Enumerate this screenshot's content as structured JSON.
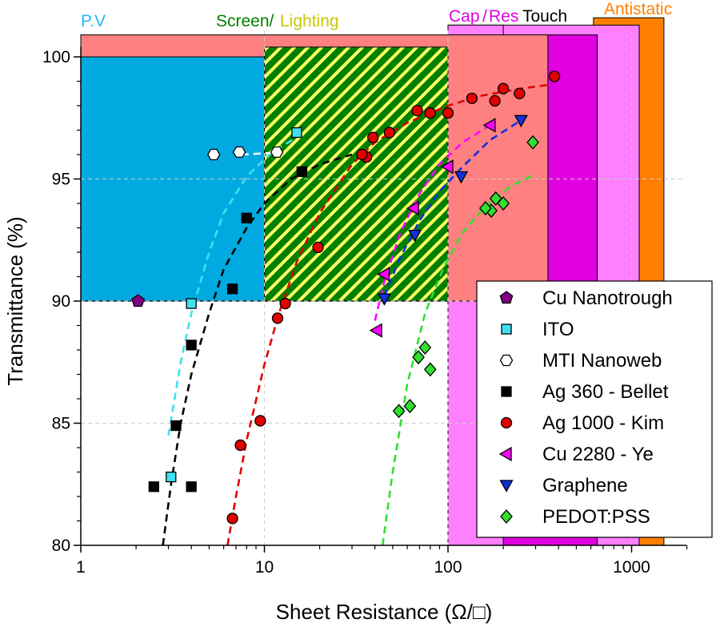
{
  "chart_data": {
    "type": "scatter",
    "xscale": "log",
    "xlim": [
      1,
      2000
    ],
    "ylim": [
      80,
      101.2
    ],
    "xlabel": "Sheet Resistance (Ω/□)",
    "ylabel": "Transmittance (%)",
    "x_ticks": [
      {
        "value": 1,
        "label": "1"
      },
      {
        "value": 10,
        "label": "10"
      },
      {
        "value": 100,
        "label": "100"
      },
      {
        "value": 1000,
        "label": "1000"
      }
    ],
    "y_ticks": [
      {
        "value": 80,
        "label": "80"
      },
      {
        "value": 85,
        "label": "85"
      },
      {
        "value": 90,
        "label": "90"
      },
      {
        "value": 95,
        "label": "95"
      },
      {
        "value": 100,
        "label": "100"
      }
    ],
    "regions": [
      {
        "name": "antistatic",
        "x": [
          620,
          1500
        ],
        "y": [
          80,
          101.6
        ],
        "color": "#ff8000"
      },
      {
        "name": "cap-res",
        "x": [
          100,
          1100
        ],
        "y": [
          80,
          101.3
        ],
        "color": "#ff80ff"
      },
      {
        "name": "touch",
        "x": [
          100,
          650
        ],
        "y": [
          80,
          100.9
        ],
        "color": "#e000e0"
      },
      {
        "name": "cap-res-lower",
        "x": [
          100,
          200
        ],
        "y": [
          80,
          101.3
        ],
        "color": "#ff80ff"
      },
      {
        "name": "screen-lighting",
        "x": [
          1,
          350
        ],
        "y": [
          90,
          100.9
        ],
        "color": "#ff8080"
      },
      {
        "name": "pv",
        "x": [
          1,
          10
        ],
        "y": [
          90,
          100
        ],
        "color": "#00aae0"
      },
      {
        "name": "hatched",
        "x": [
          10,
          100
        ],
        "y": [
          90,
          100.4
        ],
        "color": "#008000"
      }
    ],
    "region_labels": [
      {
        "text": "P.V",
        "color": "#29b6f6"
      },
      {
        "text": "Screen/",
        "color": "#008000"
      },
      {
        "text": "Lighting",
        "color": "#c8c800"
      },
      {
        "text": "Cap",
        "color": "#e000e0"
      },
      {
        "text": "/",
        "color": "#e000e0"
      },
      {
        "text": "Res",
        "color": "#e000e0"
      },
      {
        "text": "Touch",
        "color": "#000000"
      },
      {
        "text": "Antistatic",
        "color": "#ff8000"
      }
    ],
    "series": [
      {
        "name": "Cu Nanotrough",
        "marker": "pentagon",
        "color": "#800080",
        "points": [
          [
            2.05,
            90.0
          ]
        ]
      },
      {
        "name": "ITO",
        "marker": "square",
        "color": "#40e0f0",
        "points": [
          [
            15,
            96.9
          ],
          [
            4,
            89.9
          ],
          [
            3.1,
            82.8
          ]
        ],
        "fit": [
          [
            3.0,
            84.5
          ],
          [
            3.5,
            87.5
          ],
          [
            4,
            89.5
          ],
          [
            5,
            92
          ],
          [
            6,
            93.6
          ],
          [
            8,
            95.1
          ],
          [
            11,
            96.1
          ],
          [
            15,
            96.7
          ]
        ]
      },
      {
        "name": "MTI Nanoweb",
        "marker": "hexagon",
        "color": "#ffffff",
        "points": [
          [
            5.3,
            96.0
          ],
          [
            7.3,
            96.1
          ],
          [
            11.7,
            96.1
          ]
        ],
        "fit": [
          [
            7.5,
            96.0
          ],
          [
            10,
            96.05
          ],
          [
            12,
            96.1
          ]
        ]
      },
      {
        "name": "Ag 360 - Bellet",
        "marker": "square",
        "color": "#000000",
        "points": [
          [
            16,
            95.3
          ],
          [
            8,
            93.4
          ],
          [
            6.7,
            90.5
          ],
          [
            4,
            88.2
          ],
          [
            3.3,
            84.9
          ],
          [
            2.5,
            82.4
          ],
          [
            4,
            82.4
          ]
        ],
        "fit": [
          [
            2.8,
            80.0
          ],
          [
            3.1,
            82.5
          ],
          [
            3.5,
            85
          ],
          [
            4,
            87
          ],
          [
            5,
            89.5
          ],
          [
            6,
            91.3
          ],
          [
            8,
            93
          ],
          [
            10,
            94
          ],
          [
            14,
            95
          ],
          [
            20,
            95.6
          ],
          [
            30,
            96
          ]
        ]
      },
      {
        "name": "Ag 1000 - Kim",
        "marker": "circle",
        "color": "#e00000",
        "points": [
          [
            380,
            99.2
          ],
          [
            245,
            98.5
          ],
          [
            200,
            98.7
          ],
          [
            180,
            98.2
          ],
          [
            135,
            98.3
          ],
          [
            100,
            97.7
          ],
          [
            80,
            97.7
          ],
          [
            68,
            97.8
          ],
          [
            48,
            96.9
          ],
          [
            39,
            96.7
          ],
          [
            36,
            95.9
          ],
          [
            34,
            96.0
          ],
          [
            19.6,
            92.2
          ],
          [
            13,
            89.9
          ],
          [
            11.8,
            89.3
          ],
          [
            9.5,
            85.1
          ],
          [
            7.4,
            84.1
          ],
          [
            6.7,
            81.1
          ]
        ],
        "fit": [
          [
            6.3,
            80.0
          ],
          [
            7,
            82
          ],
          [
            8,
            84.3
          ],
          [
            10,
            87.4
          ],
          [
            12,
            89.5
          ],
          [
            15,
            91.6
          ],
          [
            20,
            93.6
          ],
          [
            30,
            95.6
          ],
          [
            40,
            96.5
          ],
          [
            60,
            97.3
          ],
          [
            80,
            97.7
          ],
          [
            100,
            98
          ],
          [
            150,
            98.4
          ],
          [
            250,
            98.7
          ],
          [
            350,
            98.85
          ]
        ]
      },
      {
        "name": "Cu 2280 - Ye",
        "marker": "triangle-left",
        "color": "#ff00ff",
        "points": [
          [
            170,
            97.2
          ],
          [
            100,
            95.5
          ],
          [
            65,
            93.8
          ],
          [
            45,
            91.1
          ],
          [
            41,
            88.8
          ]
        ],
        "fit": [
          [
            40,
            89.2
          ],
          [
            45,
            90.8
          ],
          [
            55,
            92.8
          ],
          [
            70,
            94.4
          ],
          [
            90,
            95.6
          ],
          [
            120,
            96.5
          ],
          [
            170,
            97.2
          ]
        ]
      },
      {
        "name": "Graphene",
        "marker": "triangle-down",
        "color": "#1030e0",
        "points": [
          [
            250,
            97.4
          ],
          [
            118,
            95.1
          ],
          [
            66,
            92.7
          ],
          [
            45,
            90.1
          ]
        ],
        "fit": [
          [
            45,
            90.2
          ],
          [
            55,
            91.8
          ],
          [
            70,
            93.3
          ],
          [
            90,
            94.5
          ],
          [
            120,
            95.5
          ],
          [
            170,
            96.6
          ],
          [
            250,
            97.4
          ]
        ]
      },
      {
        "name": "PEDOT:PSS",
        "marker": "diamond",
        "color": "#30e030",
        "points": [
          [
            290,
            96.5
          ],
          [
            200,
            94.0
          ],
          [
            182,
            94.2
          ],
          [
            172,
            93.7
          ],
          [
            160,
            93.8
          ],
          [
            75,
            88.1
          ],
          [
            80,
            87.2
          ],
          [
            69,
            87.7
          ],
          [
            62,
            85.7
          ],
          [
            54,
            85.5
          ]
        ],
        "fit": [
          [
            44,
            80.0
          ],
          [
            50,
            83
          ],
          [
            60,
            86.6
          ],
          [
            75,
            89.5
          ],
          [
            95,
            91.4
          ],
          [
            120,
            92.8
          ],
          [
            160,
            93.9
          ],
          [
            220,
            94.7
          ],
          [
            300,
            95.2
          ]
        ]
      }
    ]
  }
}
